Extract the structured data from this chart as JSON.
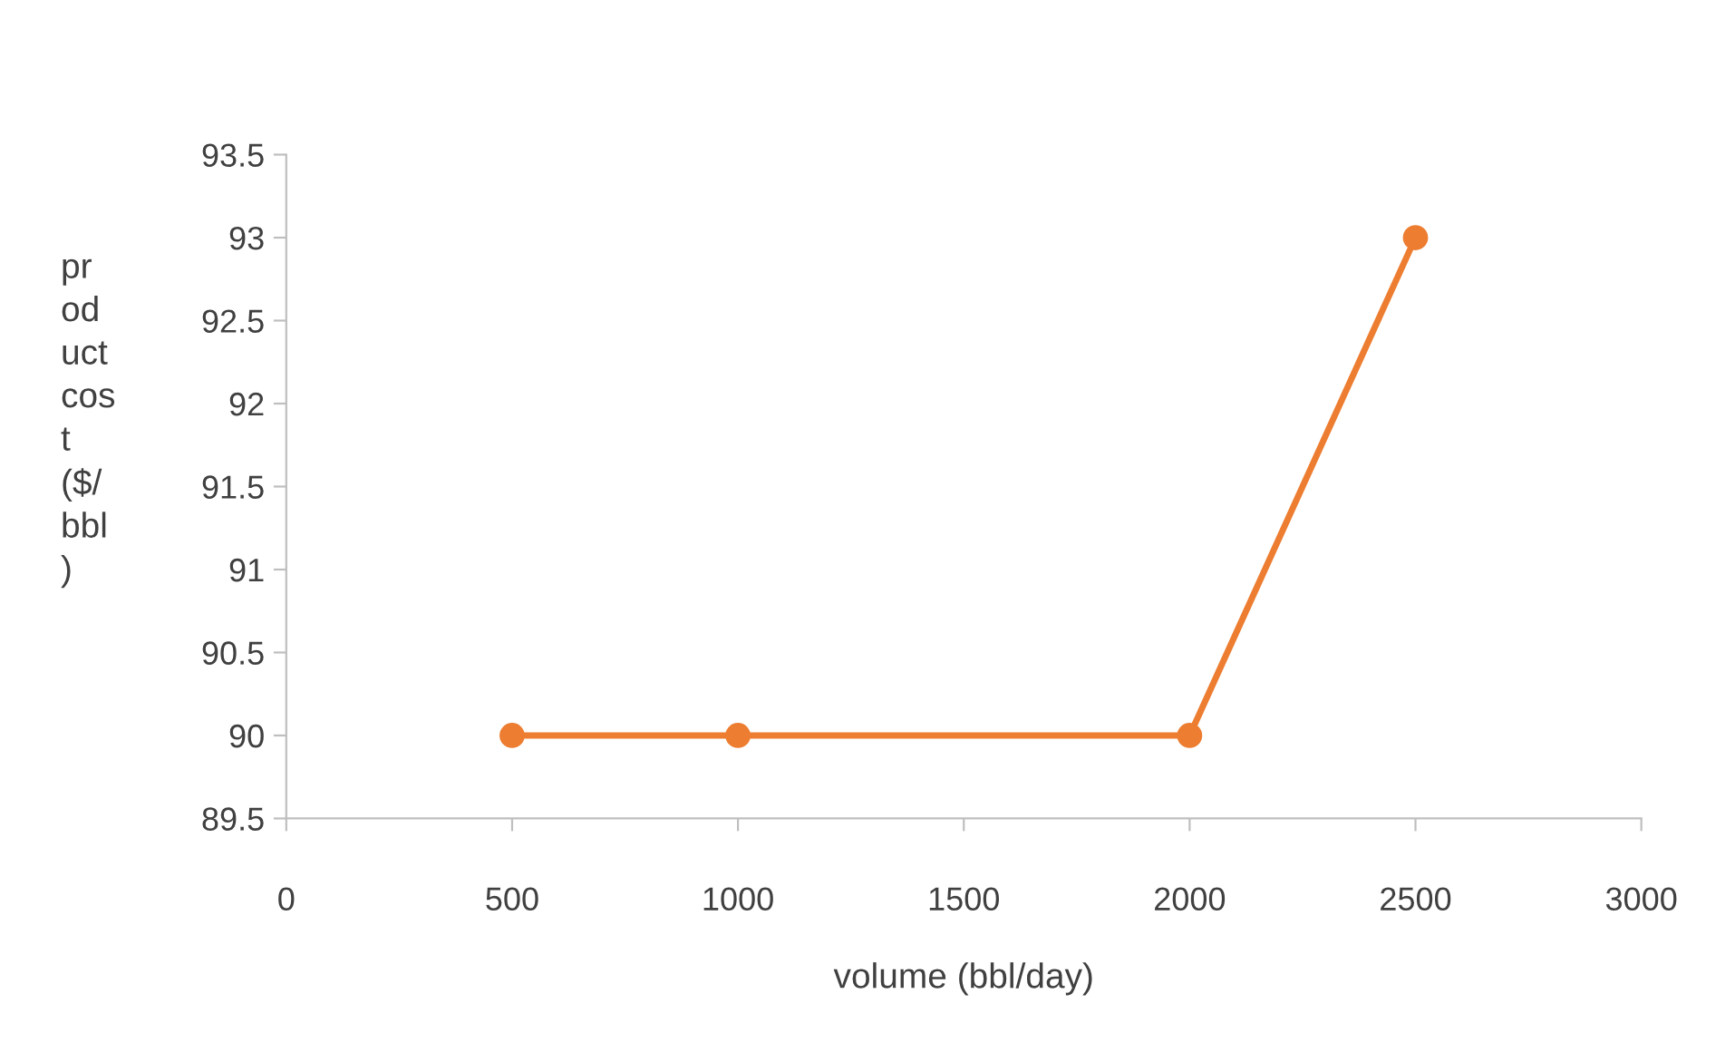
{
  "chart_data": {
    "type": "line",
    "xlabel": "volume (bbl/day)",
    "ylabel": "pr\nod\nuct\ncos\nt\n($/\nbbl\n)",
    "x": [
      500,
      1000,
      2000,
      2500
    ],
    "series": [
      {
        "color": "#ed7d31",
        "values": [
          90,
          90,
          90,
          93
        ]
      }
    ],
    "xlim": [
      0,
      3000
    ],
    "xticks": [
      0,
      500,
      1000,
      1500,
      2000,
      2500,
      3000
    ],
    "ylim": [
      89.5,
      93.5
    ],
    "yticks": [
      89.5,
      90,
      90.5,
      91,
      91.5,
      92,
      92.5,
      93,
      93.5
    ],
    "marker": "circle",
    "line_style": "solid",
    "grid": false,
    "legend": false
  }
}
